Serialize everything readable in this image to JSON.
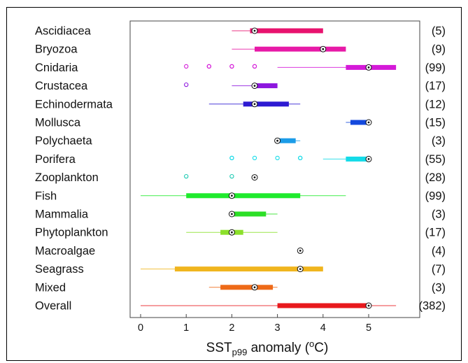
{
  "chart_data": {
    "type": "boxplot",
    "xlabel": {
      "main": "SST",
      "sub": "p99",
      "rest": " anomaly (",
      "sup": "o",
      "end": "C)"
    },
    "xlim": [
      -0.3,
      5.8
    ],
    "xticks": [
      0,
      1,
      2,
      3,
      4,
      5
    ],
    "grid": false,
    "rows": [
      {
        "label": "Ascidiacea",
        "count": "(5)",
        "color": "#e8126e",
        "whisker": [
          2.0,
          2.4
        ],
        "box": [
          2.4,
          4.0
        ],
        "median": 2.5,
        "outliers": []
      },
      {
        "label": "Bryozoa",
        "count": "(9)",
        "color": "#e71aa7",
        "whisker": [
          2.0,
          4.5
        ],
        "box": [
          2.5,
          4.5
        ],
        "median": 4.0,
        "outliers": []
      },
      {
        "label": "Cnidaria",
        "count": "(99)",
        "color": "#d41ad8",
        "whisker": [
          3.0,
          5.6
        ],
        "box": [
          4.5,
          5.6
        ],
        "median": 5.0,
        "outliers": [
          1.0,
          1.5,
          1.5,
          2.0,
          2.0,
          2.5,
          2.5
        ]
      },
      {
        "label": "Crustacea",
        "count": "(17)",
        "color": "#8d16de",
        "whisker": [
          2.0,
          3.0
        ],
        "box": [
          2.5,
          3.0
        ],
        "median": 2.5,
        "outliers": [
          1.0
        ]
      },
      {
        "label": "Echinodermata",
        "count": "(12)",
        "color": "#2d1ad2",
        "whisker": [
          1.5,
          3.5
        ],
        "box": [
          2.25,
          3.25
        ],
        "median": 2.5,
        "outliers": []
      },
      {
        "label": "Mollusca",
        "count": "(15)",
        "color": "#1449dd",
        "whisker": [
          4.5,
          5.0
        ],
        "box": [
          4.6,
          5.0
        ],
        "median": 5.0,
        "outliers": []
      },
      {
        "label": "Polychaeta",
        "count": "(3)",
        "color": "#1b9ce8",
        "whisker": [
          3.0,
          3.5
        ],
        "box": [
          3.0,
          3.4
        ],
        "median": 3.0,
        "outliers": []
      },
      {
        "label": "Porifera",
        "count": "(55)",
        "color": "#13dbe8",
        "whisker": [
          4.0,
          5.0
        ],
        "box": [
          4.5,
          5.0
        ],
        "median": 5.0,
        "outliers": [
          2.0,
          2.0,
          2.5,
          3.0,
          3.5,
          3.5
        ]
      },
      {
        "label": "Zooplankton",
        "count": "(28)",
        "color": "#16c9b0",
        "whisker": [
          2.5,
          2.5
        ],
        "box": [
          2.5,
          2.5
        ],
        "median": 2.5,
        "outliers": [
          1.0,
          2.0
        ]
      },
      {
        "label": "Fish",
        "count": "(99)",
        "color": "#1fea2d",
        "whisker": [
          0.0,
          4.5
        ],
        "box": [
          1.0,
          3.5
        ],
        "median": 2.0,
        "outliers": []
      },
      {
        "label": "Mammalia",
        "count": "(3)",
        "color": "#2cdf26",
        "whisker": [
          2.0,
          3.0
        ],
        "box": [
          2.0,
          2.75
        ],
        "median": 2.0,
        "outliers": []
      },
      {
        "label": "Phytoplankton",
        "count": "(17)",
        "color": "#8ce02b",
        "whisker": [
          1.0,
          3.0
        ],
        "box": [
          1.75,
          2.25
        ],
        "median": 2.0,
        "outliers": []
      },
      {
        "label": "Macroalgae",
        "count": "(4)",
        "color": "#e0d427",
        "whisker": [
          3.5,
          3.5
        ],
        "box": [
          3.5,
          3.5
        ],
        "median": 3.5,
        "outliers": []
      },
      {
        "label": "Seagrass",
        "count": "(7)",
        "color": "#f0b51e",
        "whisker": [
          0.0,
          4.0
        ],
        "box": [
          0.75,
          4.0
        ],
        "median": 3.5,
        "outliers": []
      },
      {
        "label": "Mixed",
        "count": "(3)",
        "color": "#ee6a18",
        "whisker": [
          1.5,
          3.0
        ],
        "box": [
          1.75,
          2.9
        ],
        "median": 2.5,
        "outliers": []
      },
      {
        "label": "Overall",
        "count": "(382)",
        "color": "#e8191d",
        "whisker": [
          0.0,
          5.6
        ],
        "box": [
          3.0,
          5.0
        ],
        "median": 5.0,
        "outliers": []
      }
    ]
  }
}
